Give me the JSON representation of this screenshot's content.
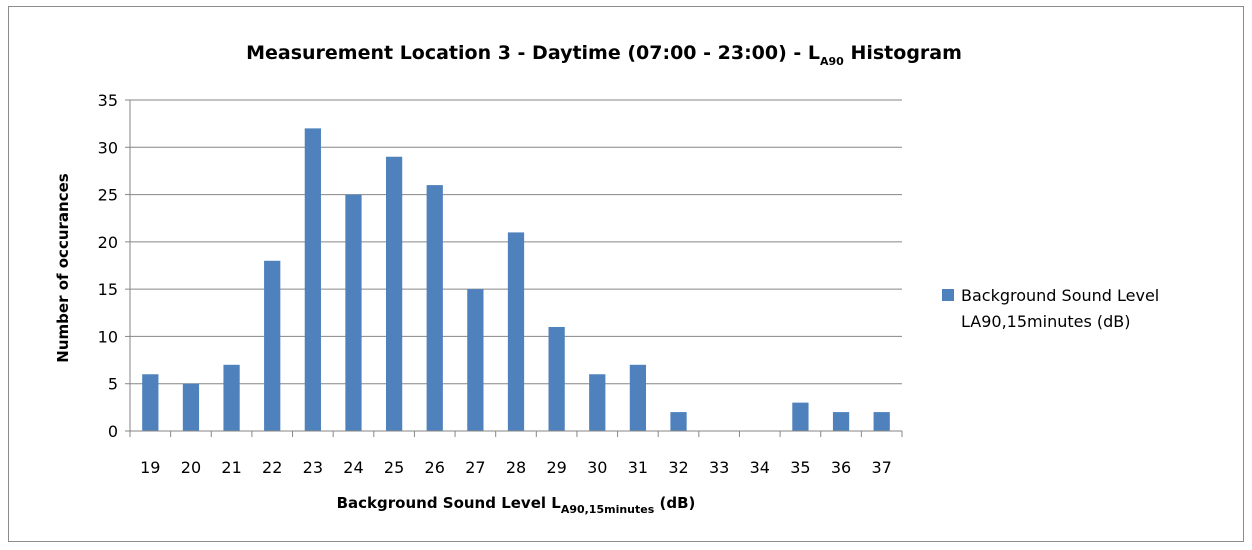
{
  "chart_data": {
    "type": "bar",
    "title_main": "Measurement Location  3 - Daytime (07:00 - 23:00) - L",
    "title_sub": "A90",
    "title_tail": " Histogram",
    "xlabel_main": "Background Sound Level L",
    "xlabel_sub": "A90,15minutes",
    "xlabel_tail": " (dB)",
    "ylabel": "Number of occurances",
    "categories": [
      "19",
      "20",
      "21",
      "22",
      "23",
      "24",
      "25",
      "26",
      "27",
      "28",
      "29",
      "30",
      "31",
      "32",
      "33",
      "34",
      "35",
      "36",
      "37"
    ],
    "series": [
      {
        "name": "Background Sound Level LA90,15minutes (dB)",
        "legend_lines": [
          "Background Sound Level",
          "LA90,15minutes (dB)"
        ],
        "color": "#4f81bd",
        "values": [
          6,
          5,
          7,
          18,
          32,
          25,
          29,
          26,
          15,
          21,
          11,
          6,
          7,
          2,
          0,
          0,
          3,
          2,
          2
        ]
      }
    ],
    "ylim": [
      0,
      35
    ],
    "yticks": [
      "0",
      "5",
      "10",
      "15",
      "20",
      "25",
      "30",
      "35"
    ],
    "grid": true,
    "legend_position": "right"
  }
}
